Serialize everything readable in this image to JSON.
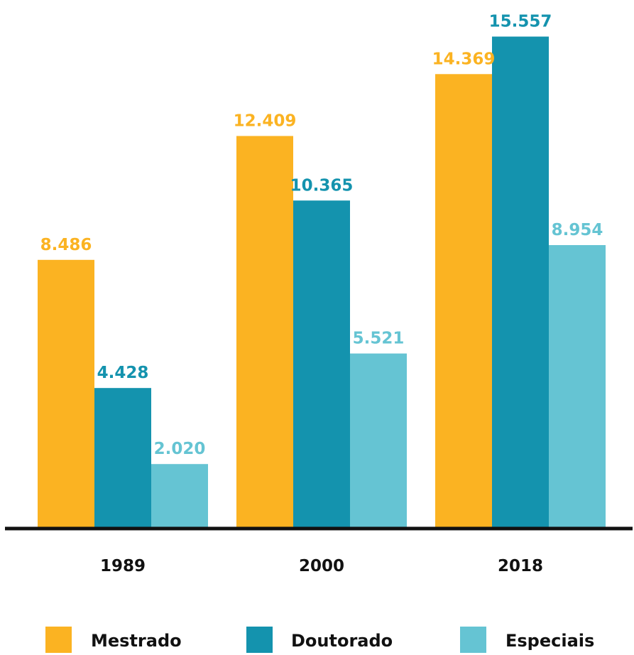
{
  "chart_data": {
    "type": "bar",
    "categories": [
      "1989",
      "2000",
      "2018"
    ],
    "series": [
      {
        "name": "Mestrado",
        "color": "#FBB322",
        "values": [
          8486,
          12409,
          14369
        ],
        "labels": [
          "8.486",
          "12.409",
          "14.369"
        ]
      },
      {
        "name": "Doutorado",
        "color": "#1493AE",
        "values": [
          4428,
          10365,
          15557
        ],
        "labels": [
          "4.428",
          "10.365",
          "15.557"
        ]
      },
      {
        "name": "Especiais",
        "color": "#65C4D3",
        "values": [
          2020,
          5521,
          8954
        ],
        "labels": [
          "2.020",
          "5.521",
          "8.954"
        ]
      }
    ],
    "ylim": [
      0,
      16000
    ],
    "grid": false,
    "legend_position": "bottom",
    "axis_color": "#111111"
  }
}
